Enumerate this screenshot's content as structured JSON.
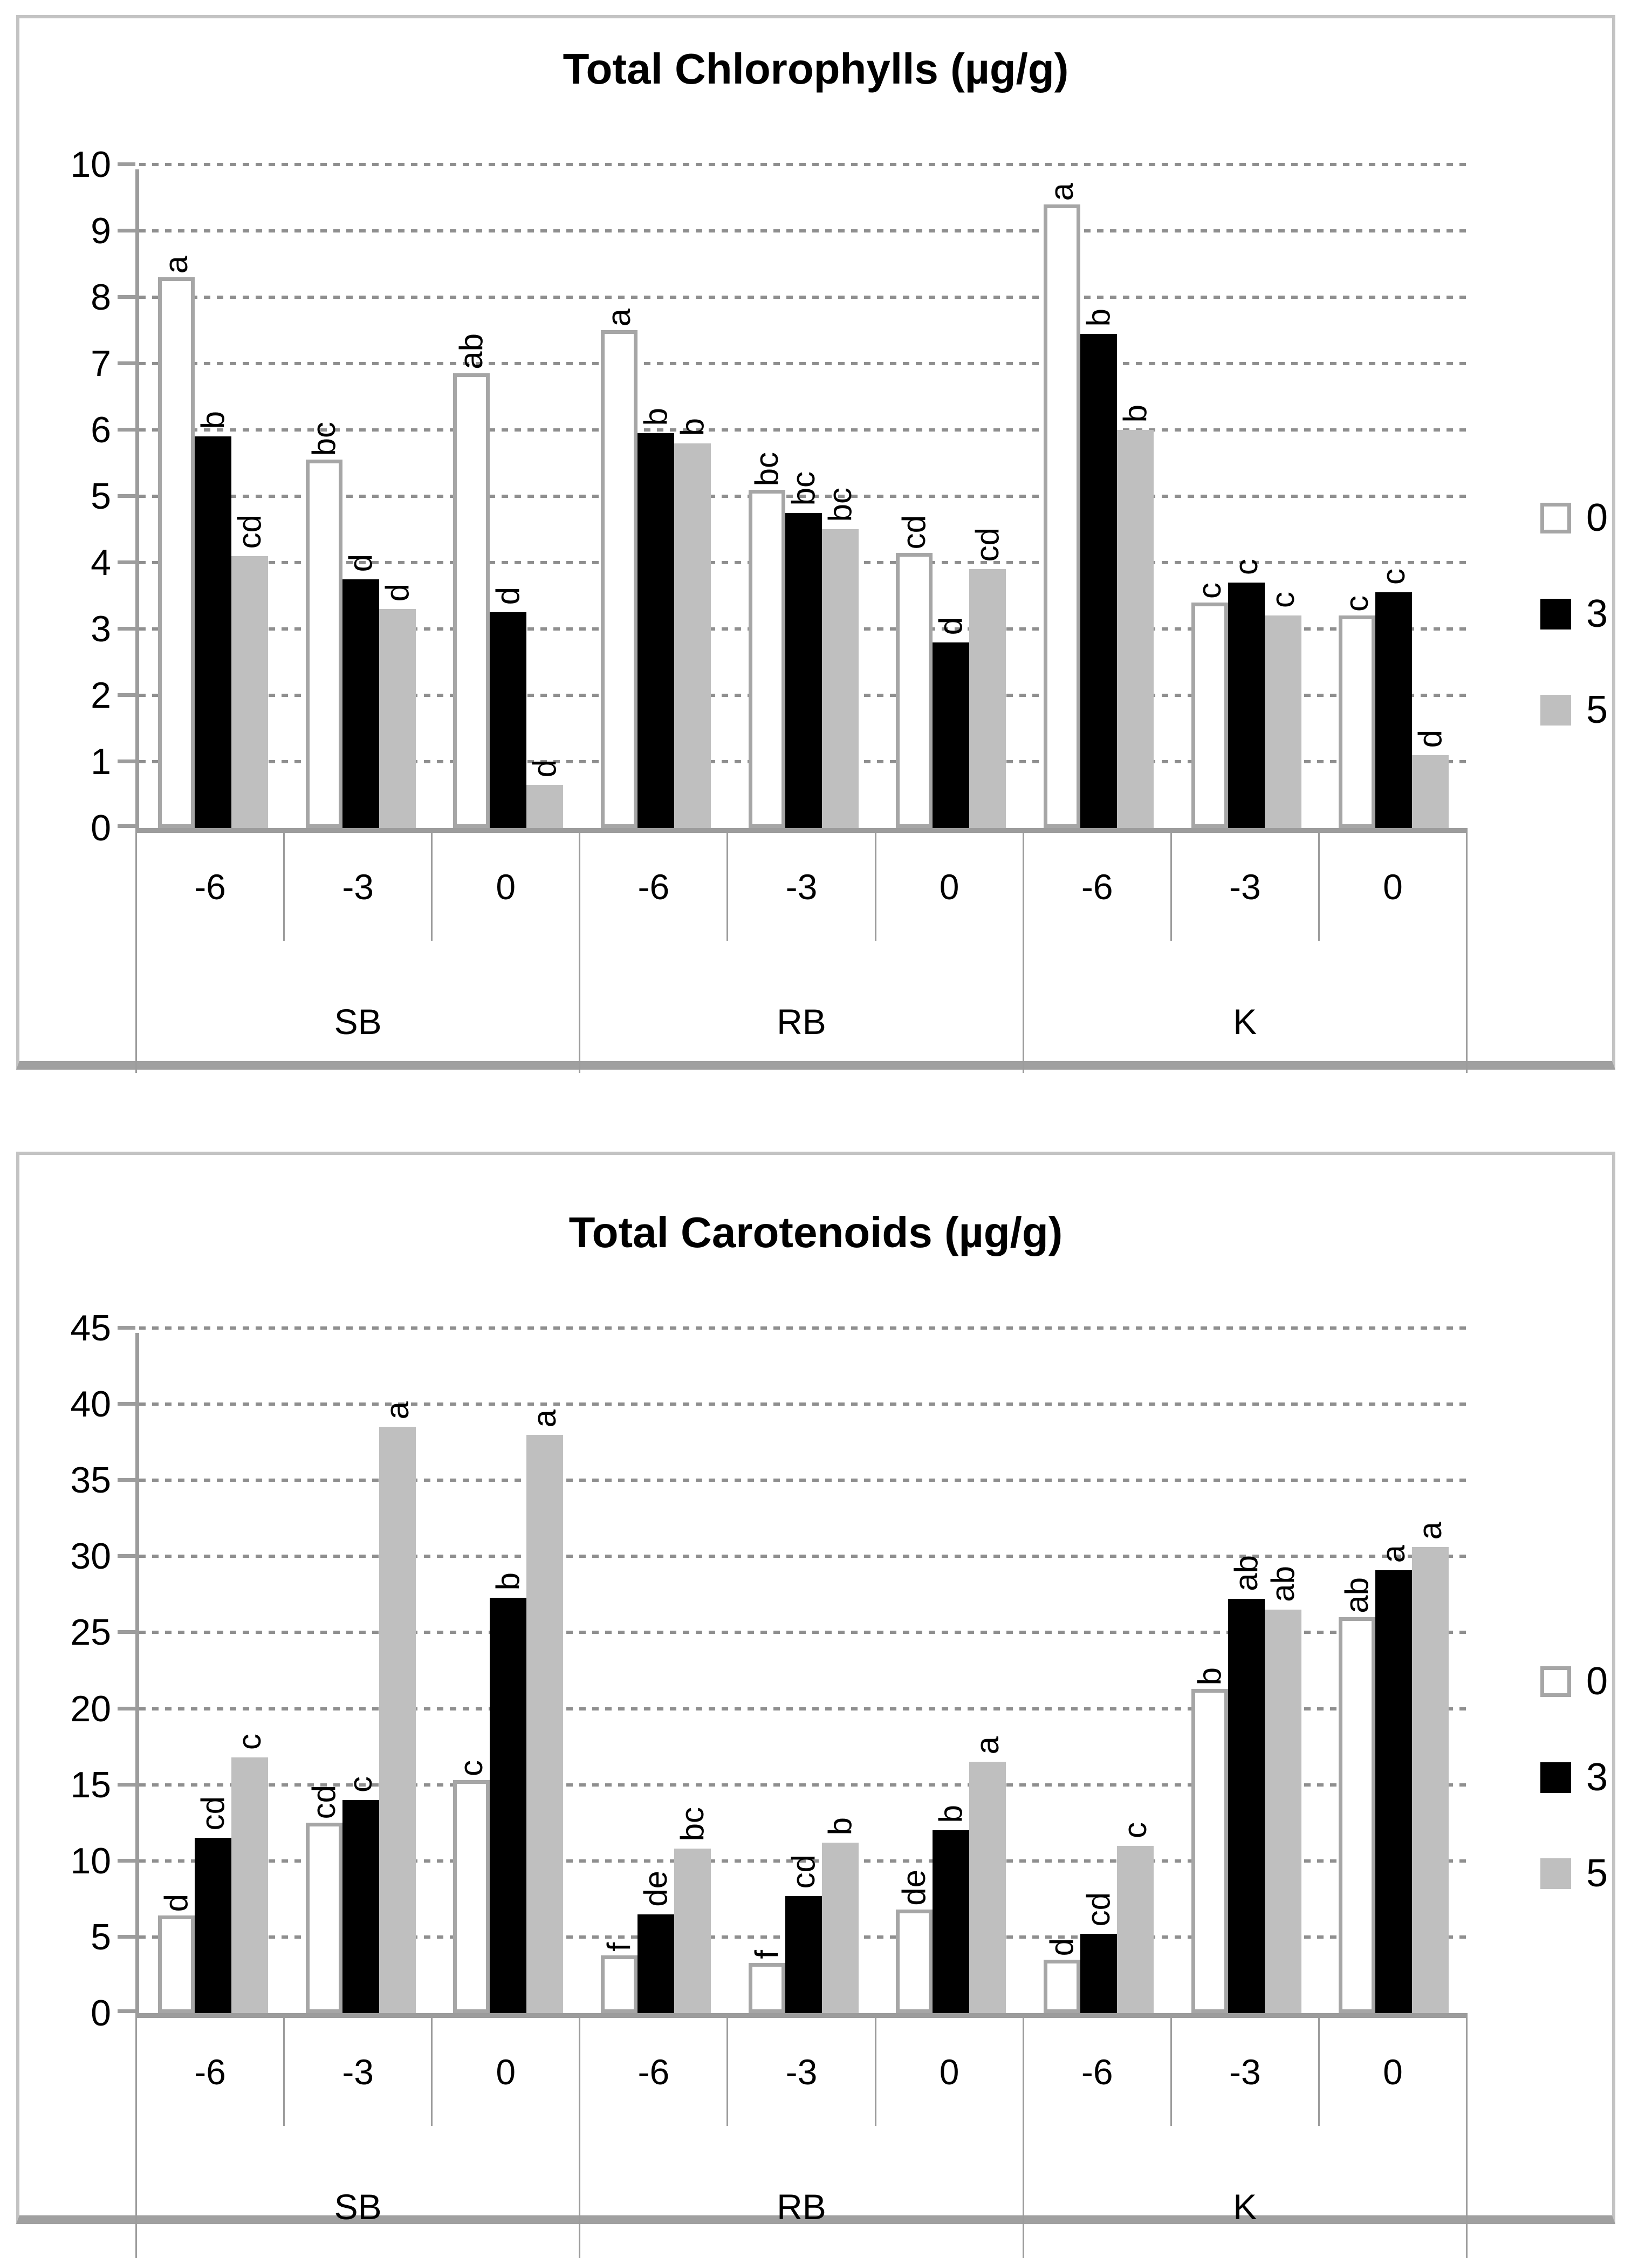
{
  "colors": {
    "bar_open_fill": "#ffffff",
    "bar_open_border": "#a6a6a6",
    "bar_filled": "#000000",
    "bar_gray": "#bfbfbf",
    "gridline": "#8f8f8f",
    "axis": "#9c9c9c",
    "text": "#000000",
    "frame": "#c3c3c3",
    "frame_shadow": "#a0a0a0"
  },
  "charts": [
    {
      "title": "Total Chlorophylls (µg/g)",
      "legend": [
        {
          "label": "0",
          "swatch": "open"
        },
        {
          "label": "3",
          "swatch": "filled"
        },
        {
          "label": "5",
          "swatch": "gray"
        }
      ],
      "chart_data": {
        "type": "bar",
        "title": "Total Chlorophylls (µg/g)",
        "xlabel": "",
        "ylabel": "",
        "ylim": [
          0,
          10
        ],
        "yticks": [
          0,
          1,
          2,
          3,
          4,
          5,
          6,
          7,
          8,
          9,
          10
        ],
        "grid": "dotted-horizontal",
        "legend_position": "right",
        "group_labels": [
          "SB",
          "RB",
          "K"
        ],
        "categories": [
          "-6",
          "-3",
          "0",
          "-6",
          "-3",
          "0",
          "-6",
          "-3",
          "0"
        ],
        "series": [
          {
            "name": "0",
            "style": "open",
            "values": [
              8.3,
              5.55,
              6.85,
              7.5,
              5.1,
              4.15,
              9.4,
              3.4,
              3.2
            ],
            "sig_labels": [
              "a",
              "bc",
              "ab",
              "a",
              "bc",
              "cd",
              "a",
              "c",
              "c"
            ]
          },
          {
            "name": "3",
            "style": "filled",
            "values": [
              5.9,
              3.75,
              3.25,
              5.95,
              4.75,
              2.8,
              7.45,
              3.7,
              3.55
            ],
            "sig_labels": [
              "b",
              "d",
              "d",
              "b",
              "bc",
              "d",
              "b",
              "c",
              "c"
            ]
          },
          {
            "name": "5",
            "style": "gray",
            "values": [
              4.1,
              3.3,
              0.65,
              5.8,
              4.5,
              3.9,
              6.0,
              3.2,
              1.1
            ],
            "sig_labels": [
              "cd",
              "d",
              "d",
              "b",
              "bc",
              "cd",
              "b",
              "c",
              "d"
            ]
          }
        ]
      }
    },
    {
      "title": "Total Carotenoids (µg/g)",
      "legend": [
        {
          "label": "0",
          "swatch": "open"
        },
        {
          "label": "3",
          "swatch": "filled"
        },
        {
          "label": "5",
          "swatch": "gray"
        }
      ],
      "chart_data": {
        "type": "bar",
        "title": "Total Carotenoids (µg/g)",
        "xlabel": "",
        "ylabel": "",
        "ylim": [
          0,
          45
        ],
        "yticks": [
          0,
          5,
          10,
          15,
          20,
          25,
          30,
          35,
          40,
          45
        ],
        "grid": "dotted-horizontal",
        "legend_position": "right",
        "group_labels": [
          "SB",
          "RB",
          "K"
        ],
        "categories": [
          "-6",
          "-3",
          "0",
          "-6",
          "-3",
          "0",
          "-6",
          "-3",
          "0"
        ],
        "series": [
          {
            "name": "0",
            "style": "open",
            "values": [
              6.4,
              12.5,
              15.3,
              3.8,
              3.3,
              6.8,
              3.5,
              21.3,
              26.0
            ],
            "sig_labels": [
              "d",
              "cd",
              "c",
              "f",
              "f",
              "de",
              "d",
              "b",
              "ab"
            ]
          },
          {
            "name": "3",
            "style": "filled",
            "values": [
              11.5,
              14.0,
              27.3,
              6.5,
              7.7,
              12.0,
              5.2,
              27.2,
              29.1
            ],
            "sig_labels": [
              "cd",
              "c",
              "b",
              "de",
              "cd",
              "b",
              "cd",
              "ab",
              "a"
            ]
          },
          {
            "name": "5",
            "style": "gray",
            "values": [
              16.8,
              38.5,
              38.0,
              10.8,
              11.2,
              16.5,
              11.0,
              26.5,
              30.6
            ],
            "sig_labels": [
              "c",
              "a",
              "a",
              "bc",
              "b",
              "a",
              "c",
              "ab",
              "a"
            ]
          }
        ]
      }
    }
  ]
}
